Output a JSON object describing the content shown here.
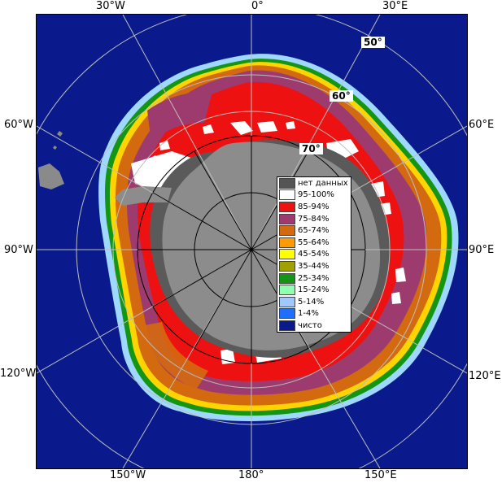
{
  "edge_labels": {
    "top_30w": "30°W",
    "top_0": "0°",
    "top_30e": "30°E",
    "left_60w": "60°W",
    "left_90w": "90°W",
    "left_120w": "120°W",
    "right_60e": "60°E",
    "right_90e": "90°E",
    "right_120e": "120°E",
    "bottom_150w": "150°W",
    "bottom_180": "180°",
    "bottom_150e": "150°E"
  },
  "latitude_labels": {
    "lat50": "50°",
    "lat60": "60°",
    "lat70": "70°"
  },
  "legend": {
    "items": [
      {
        "label": "нет данных",
        "color": "#555555"
      },
      {
        "label": "95-100%",
        "color": "#ffffff"
      },
      {
        "label": "85-94%",
        "color": "#ee1111"
      },
      {
        "label": "75-84%",
        "color": "#9e3b6e"
      },
      {
        "label": "65-74%",
        "color": "#d46a10"
      },
      {
        "label": "55-64%",
        "color": "#ff9a00"
      },
      {
        "label": "45-54%",
        "color": "#ffff00"
      },
      {
        "label": "35-44%",
        "color": "#a0a000"
      },
      {
        "label": "25-34%",
        "color": "#149614"
      },
      {
        "label": "15-24%",
        "color": "#90ffb0"
      },
      {
        "label": "5-14%",
        "color": "#a0c8ff"
      },
      {
        "label": "1-4%",
        "color": "#1e6eff"
      },
      {
        "label": "чисто",
        "color": "#0a1a8c"
      }
    ]
  },
  "colors": {
    "ocean": "#0a1a8c",
    "land": "#8c8c8c",
    "shelf": "#5a5a5a"
  }
}
